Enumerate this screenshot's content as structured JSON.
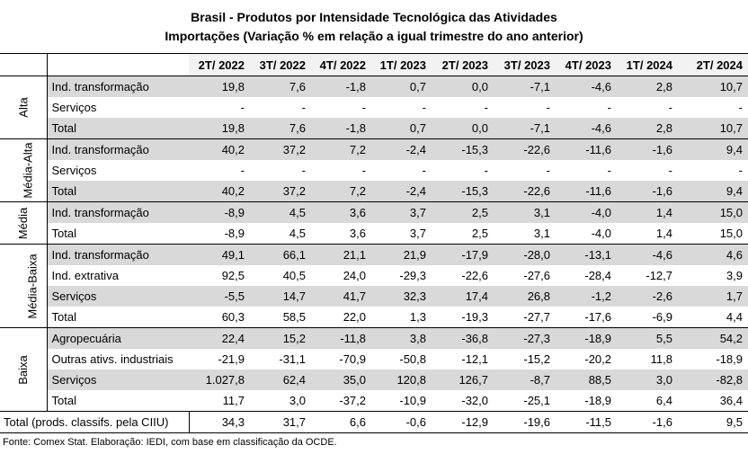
{
  "title_line1": "Brasil - Produtos por Intensidade Tecnológica das Atividades",
  "title_line2": "Importações (Variação % em relação a igual trimestre do ano anterior)",
  "columns": [
    "2T/ 2022",
    "3T/ 2022",
    "4T/ 2022",
    "1T/ 2023",
    "2T/ 2023",
    "3T/ 2023",
    "4T/ 2023",
    "1T/ 2024",
    "2T/ 2024"
  ],
  "groups": [
    {
      "name": "Alta",
      "rows": [
        {
          "label": "Ind. transformação",
          "values": [
            "19,8",
            "7,6",
            "-1,8",
            "0,7",
            "0,0",
            "-7,1",
            "-4,6",
            "2,8",
            "10,7"
          ]
        },
        {
          "label": "Serviços",
          "values": [
            "-",
            "-",
            "-",
            "-",
            "-",
            "-",
            "-",
            "-",
            "-"
          ]
        },
        {
          "label": "Total",
          "values": [
            "19,8",
            "7,6",
            "-1,8",
            "0,7",
            "0,0",
            "-7,1",
            "-4,6",
            "2,8",
            "10,7"
          ]
        }
      ]
    },
    {
      "name": "Média-Alta",
      "rows": [
        {
          "label": "Ind. transformação",
          "values": [
            "40,2",
            "37,2",
            "7,2",
            "-2,4",
            "-15,3",
            "-22,6",
            "-11,6",
            "-1,6",
            "9,4"
          ]
        },
        {
          "label": "Serviços",
          "values": [
            "-",
            "-",
            "-",
            "-",
            "-",
            "-",
            "-",
            "-",
            "-"
          ]
        },
        {
          "label": "Total",
          "values": [
            "40,2",
            "37,2",
            "7,2",
            "-2,4",
            "-15,3",
            "-22,6",
            "-11,6",
            "-1,6",
            "9,4"
          ]
        }
      ]
    },
    {
      "name": "Média",
      "rows": [
        {
          "label": "Ind. transformação",
          "values": [
            "-8,9",
            "4,5",
            "3,6",
            "3,7",
            "2,5",
            "3,1",
            "-4,0",
            "1,4",
            "15,0"
          ]
        },
        {
          "label": "Total",
          "values": [
            "-8,9",
            "4,5",
            "3,6",
            "3,7",
            "2,5",
            "3,1",
            "-4,0",
            "1,4",
            "15,0"
          ]
        }
      ]
    },
    {
      "name": "Média-Baixa",
      "rows": [
        {
          "label": "Ind. transformação",
          "values": [
            "49,1",
            "66,1",
            "21,1",
            "21,9",
            "-17,9",
            "-28,0",
            "-13,1",
            "-4,6",
            "4,6"
          ]
        },
        {
          "label": "Ind. extrativa",
          "values": [
            "92,5",
            "40,5",
            "24,0",
            "-29,3",
            "-22,6",
            "-27,6",
            "-28,4",
            "-12,7",
            "3,9"
          ]
        },
        {
          "label": "Serviços",
          "values": [
            "-5,5",
            "14,7",
            "41,7",
            "32,3",
            "17,4",
            "26,8",
            "-1,2",
            "-2,6",
            "1,7"
          ]
        },
        {
          "label": "Total",
          "values": [
            "60,3",
            "58,5",
            "22,0",
            "1,3",
            "-19,3",
            "-27,7",
            "-17,6",
            "-6,9",
            "4,4"
          ]
        }
      ]
    },
    {
      "name": "Baixa",
      "rows": [
        {
          "label": "Agropecuária",
          "values": [
            "22,4",
            "15,2",
            "-11,8",
            "3,8",
            "-36,8",
            "-27,3",
            "-18,9",
            "5,5",
            "54,2"
          ]
        },
        {
          "label": "Outras ativs. industriais",
          "values": [
            "-21,9",
            "-31,1",
            "-70,9",
            "-50,8",
            "-12,1",
            "-15,2",
            "-20,2",
            "11,8",
            "-18,9"
          ]
        },
        {
          "label": "Serviços",
          "values": [
            "1.027,8",
            "62,4",
            "35,0",
            "120,8",
            "126,7",
            "-8,7",
            "88,5",
            "3,0",
            "-82,8"
          ]
        },
        {
          "label": "Total",
          "values": [
            "11,7",
            "3,0",
            "-37,2",
            "-10,9",
            "-32,0",
            "-25,1",
            "-18,9",
            "6,4",
            "36,4"
          ]
        }
      ]
    }
  ],
  "grand_total": {
    "label": "Total (prods. classifs. pela CIIU)",
    "values": [
      "34,3",
      "31,7",
      "6,6",
      "-0,6",
      "-12,9",
      "-19,6",
      "-11,5",
      "-1,6",
      "9,5"
    ]
  },
  "source": "Fonte: Comex Stat. Elaboração: IEDI, com base em classificação da OCDE.",
  "colors": {
    "header_bg": "#f2f2f2",
    "shaded_row_bg": "#d9d9d9",
    "border": "#000000"
  }
}
